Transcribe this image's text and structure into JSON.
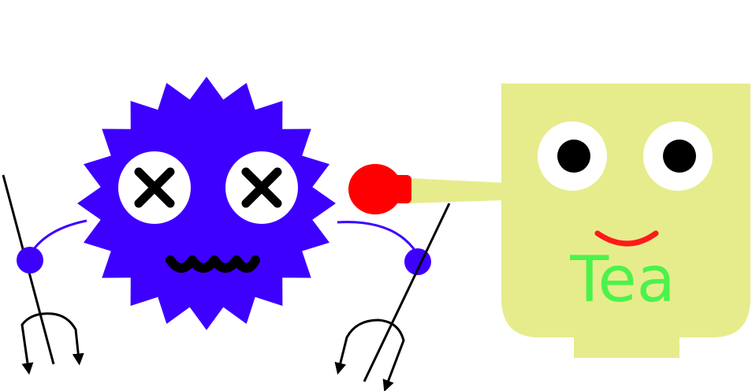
{
  "cup": {
    "label": "Tea",
    "body_color": "#e6ec8c",
    "label_color": "#4cf24c",
    "smile_color": "#ff1a1a"
  },
  "germ": {
    "body_color": "#3d00ff",
    "eye_mark": "x-mark",
    "mouth": "wavy-mouth"
  },
  "boxing_glove": {
    "color": "#ff0000"
  },
  "pitchforks": {
    "count": 2,
    "color": "#000000"
  }
}
